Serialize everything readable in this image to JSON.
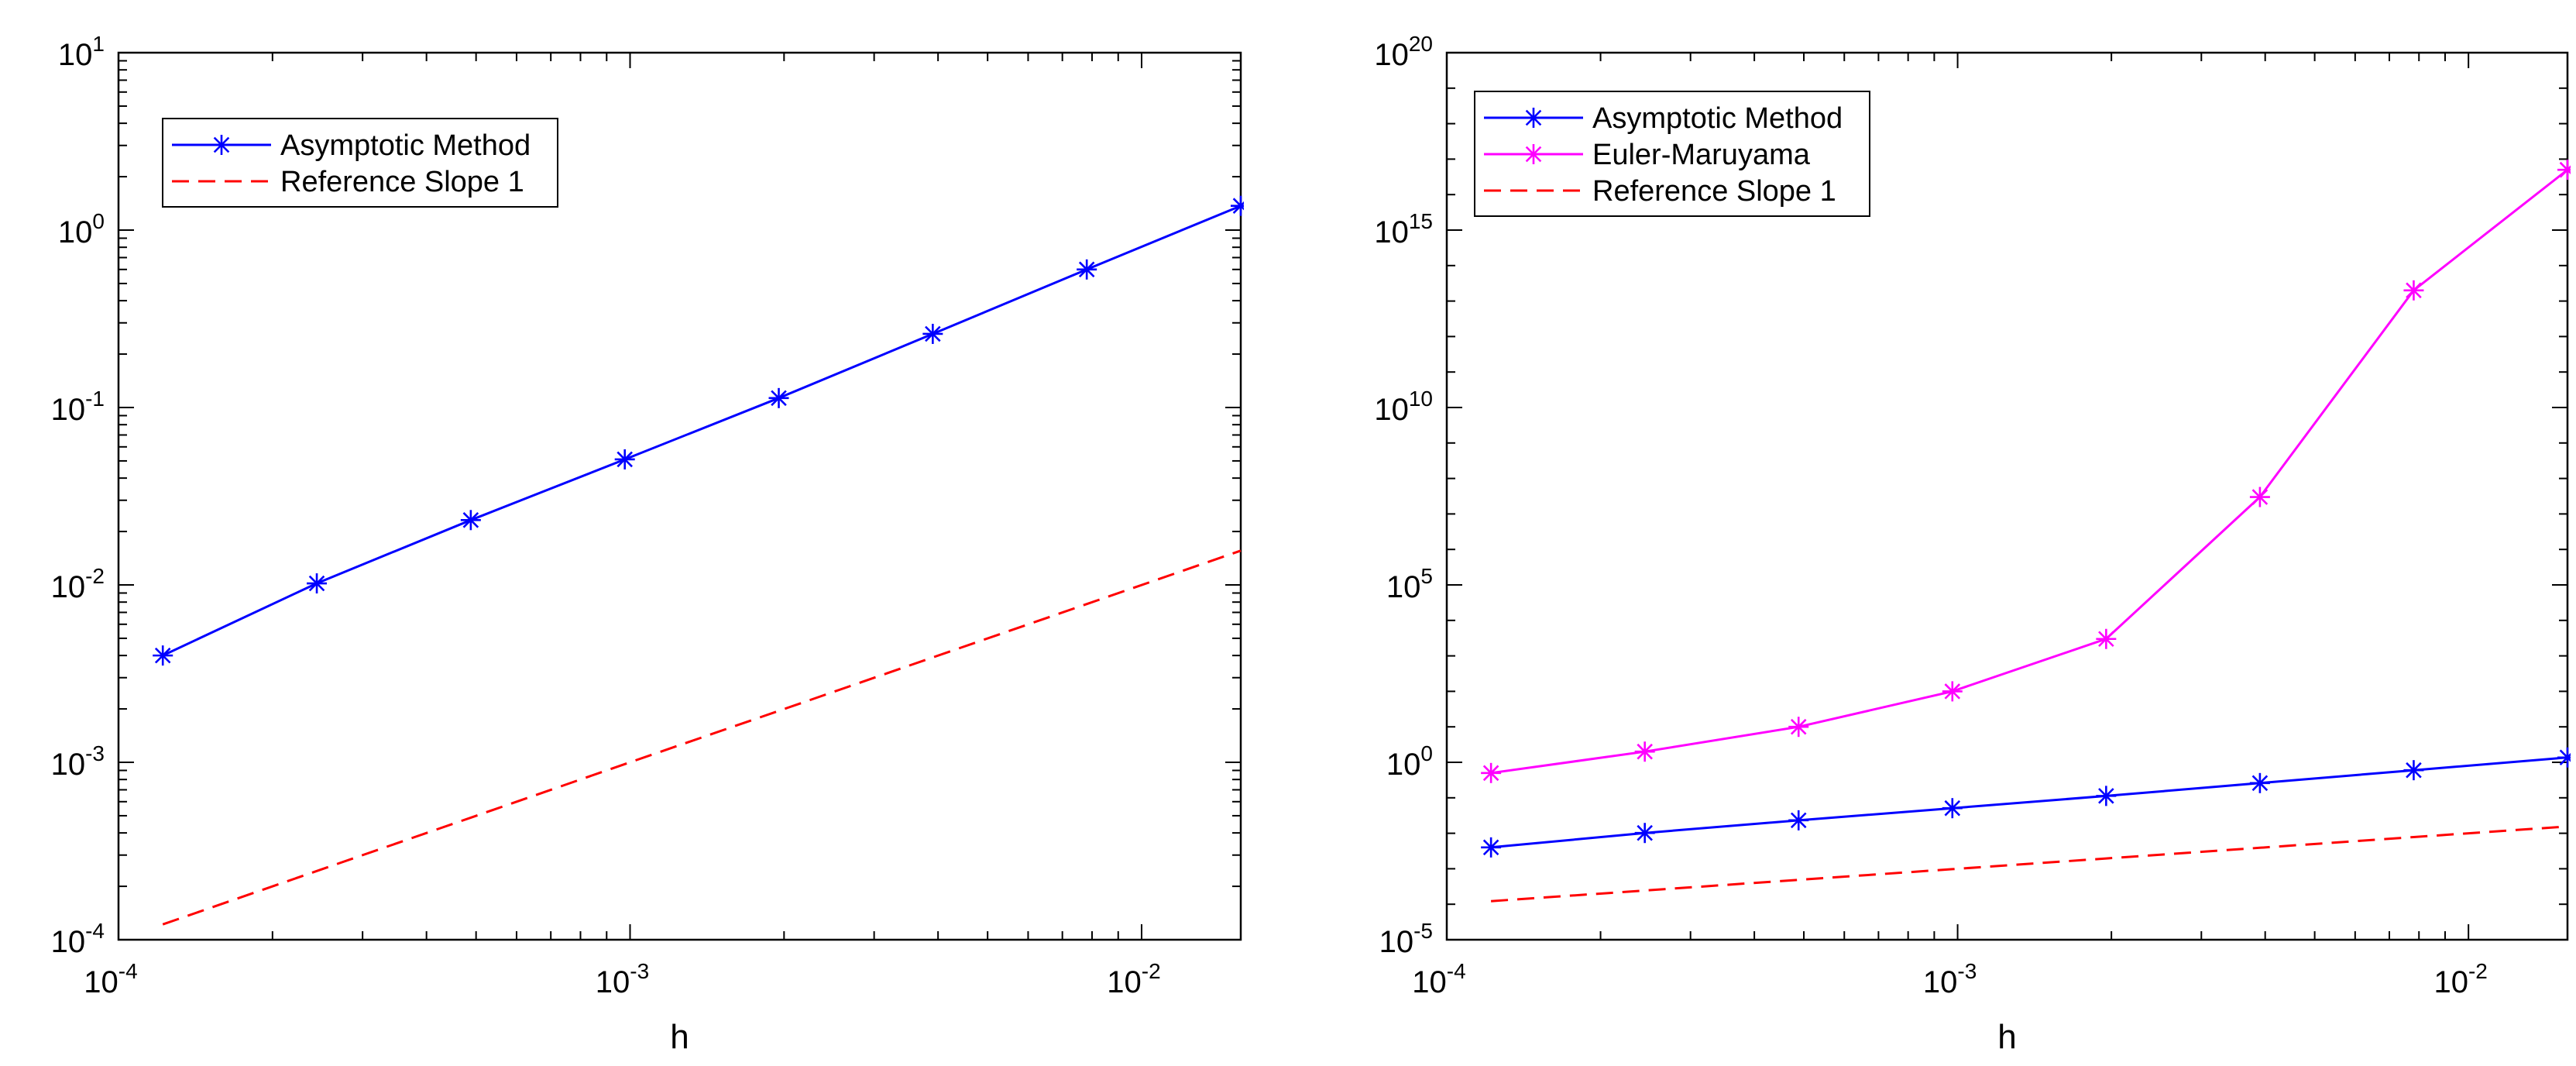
{
  "chart_data": [
    {
      "type": "line",
      "xscale": "log",
      "yscale": "log",
      "xlabel": "h",
      "ylabel": "",
      "xlim": [
        0.0001,
        0.015625
      ],
      "ylim": [
        0.0001,
        10
      ],
      "xticks": [
        {
          "value": 0.0001,
          "base": "10",
          "exp": "-4"
        },
        {
          "value": 0.001,
          "base": "10",
          "exp": "-3"
        },
        {
          "value": 0.01,
          "base": "10",
          "exp": "-2"
        }
      ],
      "yticks": [
        {
          "value": 0.0001,
          "base": "10",
          "exp": "-4"
        },
        {
          "value": 0.001,
          "base": "10",
          "exp": "-3"
        },
        {
          "value": 0.01,
          "base": "10",
          "exp": "-2"
        },
        {
          "value": 0.1,
          "base": "10",
          "exp": "-1"
        },
        {
          "value": 1,
          "base": "10",
          "exp": "0"
        },
        {
          "value": 10,
          "base": "10",
          "exp": "1"
        }
      ],
      "legend_position": "top-left",
      "series": [
        {
          "name": "Asymptotic Method",
          "color": "#0000ff",
          "style": "solid-star",
          "x": [
            0.00012207,
            0.00024414,
            0.00048828,
            0.00097656,
            0.0019531,
            0.0039063,
            0.0078125,
            0.015625
          ],
          "y": [
            0.004,
            0.0102,
            0.0232,
            0.051,
            0.113,
            0.26,
            0.6,
            1.37
          ]
        },
        {
          "name": "Reference Slope 1",
          "color": "#ff0000",
          "style": "dashed",
          "x": [
            0.00012207,
            0.00024414,
            0.00048828,
            0.00097656,
            0.0019531,
            0.0039063,
            0.0078125,
            0.015625
          ],
          "y": [
            0.000122,
            0.000244,
            0.000488,
            0.000977,
            0.00195,
            0.0039,
            0.0078,
            0.0156
          ]
        }
      ]
    },
    {
      "type": "line",
      "xscale": "log",
      "yscale": "log",
      "xlabel": "h",
      "ylabel": "",
      "xlim": [
        0.0001,
        0.015625
      ],
      "ylim": [
        1e-05,
        1e+20
      ],
      "xticks": [
        {
          "value": 0.0001,
          "base": "10",
          "exp": "-4"
        },
        {
          "value": 0.001,
          "base": "10",
          "exp": "-3"
        },
        {
          "value": 0.01,
          "base": "10",
          "exp": "-2"
        }
      ],
      "yticks": [
        {
          "value": 1e-05,
          "base": "10",
          "exp": "-5"
        },
        {
          "value": 1,
          "base": "10",
          "exp": "0"
        },
        {
          "value": 100000,
          "base": "10",
          "exp": "5"
        },
        {
          "value": 10000000000.0,
          "base": "10",
          "exp": "10"
        },
        {
          "value": 1000000000000000.0,
          "base": "10",
          "exp": "15"
        },
        {
          "value": 1e+20,
          "base": "10",
          "exp": "20"
        }
      ],
      "legend_position": "top-left",
      "series": [
        {
          "name": "Asymptotic Method",
          "color": "#0000ff",
          "style": "solid-star",
          "x": [
            0.00012207,
            0.00024414,
            0.00048828,
            0.00097656,
            0.0019531,
            0.0039063,
            0.0078125,
            0.015625
          ],
          "y": [
            0.004,
            0.0102,
            0.0232,
            0.051,
            0.113,
            0.26,
            0.6,
            1.37
          ]
        },
        {
          "name": "Euler-Maruyama",
          "color": "#ff00ff",
          "style": "solid-star",
          "x": [
            0.00012207,
            0.00024414,
            0.00048828,
            0.00097656,
            0.0019531,
            0.0039063,
            0.0078125,
            0.015625
          ],
          "y": [
            0.5,
            2.0,
            10.0,
            100.0,
            3000.0,
            30000000.0,
            20000000000000.0,
            5e+16
          ]
        },
        {
          "name": "Reference Slope 1",
          "color": "#ff0000",
          "style": "dashed",
          "x": [
            0.00012207,
            0.00024414,
            0.00048828,
            0.00097656,
            0.0019531,
            0.0039063,
            0.0078125,
            0.015625
          ],
          "y": [
            0.000122,
            0.000244,
            0.000488,
            0.000977,
            0.00195,
            0.0039,
            0.0078,
            0.0156
          ]
        }
      ]
    }
  ]
}
